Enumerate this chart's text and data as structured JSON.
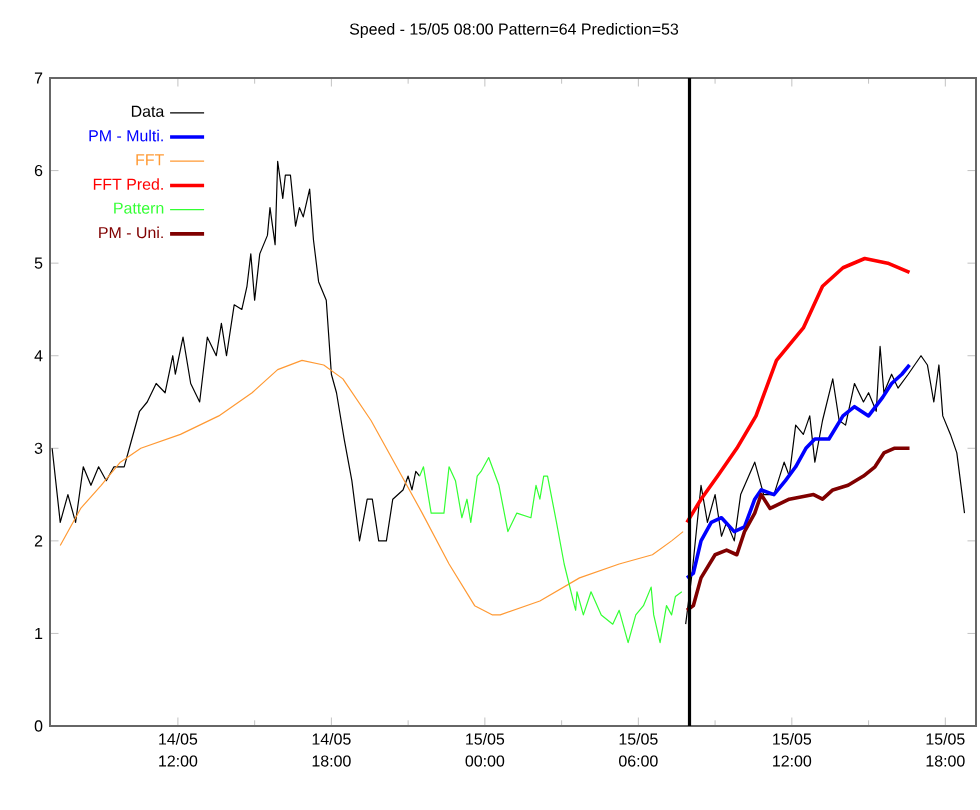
{
  "chart_data": {
    "type": "line",
    "title": "Speed - 15/05 08:00 Pattern=64 Prediction=53",
    "xlim": [
      "--05-14T07:00",
      "--05-15T19:12"
    ],
    "ylim": [
      0,
      7
    ],
    "yticks": [
      0,
      1,
      2,
      3,
      4,
      5,
      6,
      7
    ],
    "xticks": [
      {
        "value": "--05-14T12:00",
        "label": "14/05 12:00"
      },
      {
        "value": "--05-14T18:00",
        "label": "14/05 18:00"
      },
      {
        "value": "--05-15T00:00",
        "label": "15/05 00:00"
      },
      {
        "value": "--05-15T06:00",
        "label": "15/05 06:00"
      },
      {
        "value": "--05-15T12:00",
        "label": "15/05 12:00"
      },
      {
        "value": "--05-15T18:00",
        "label": "15/05 18:00"
      }
    ],
    "legend": "top left",
    "grid": false,
    "marker": "none",
    "line_style": "solid",
    "ref_lines": [
      {
        "axis": "x",
        "value": "--05-15T08:00",
        "color": "#000000"
      }
    ],
    "series": [
      {
        "name": "Data",
        "color": "#000000",
        "x": [
          "--05-14T07:05",
          "--05-14T07:24",
          "--05-14T07:42",
          "--05-14T08:00",
          "--05-14T08:18",
          "--05-14T08:36",
          "--05-14T08:54",
          "--05-14T09:12",
          "--05-14T09:30",
          "--05-14T09:54",
          "--05-14T10:12",
          "--05-14T10:30",
          "--05-14T10:48",
          "--05-14T11:09",
          "--05-14T11:30",
          "--05-14T11:48",
          "--05-14T11:54",
          "--05-14T12:12",
          "--05-14T12:30",
          "--05-14T12:51",
          "--05-14T13:09",
          "--05-14T13:30",
          "--05-14T13:42",
          "--05-14T13:54",
          "--05-14T14:12",
          "--05-14T14:30",
          "--05-14T14:42",
          "--05-14T14:51",
          "--05-14T15:00",
          "--05-14T15:12",
          "--05-14T15:30",
          "--05-14T15:36",
          "--05-14T15:48",
          "--05-14T15:54",
          "--05-14T16:06",
          "--05-14T16:12",
          "--05-14T16:24",
          "--05-14T16:36",
          "--05-14T16:45",
          "--05-14T16:54",
          "--05-14T17:09",
          "--05-14T17:18",
          "--05-14T17:30",
          "--05-14T17:48",
          "--05-14T18:00",
          "--05-14T18:12",
          "--05-14T18:30",
          "--05-14T18:48",
          "--05-14T19:06",
          "--05-14T19:24",
          "--05-14T19:36",
          "--05-14T19:51",
          "--05-14T20:09",
          "--05-14T20:24",
          "--05-14T20:48",
          "--05-14T21:00",
          "--05-14T21:09",
          "--05-14T21:18",
          "--05-14T21:27",
          "--05-15T02:00",
          "--05-15T07:51",
          "--05-15T08:06",
          "--05-15T08:27",
          "--05-15T08:42",
          "--05-15T09:00",
          "--05-15T09:15",
          "--05-15T09:27",
          "--05-15T09:45",
          "--05-15T10:00",
          "--05-15T10:33",
          "--05-15T10:54",
          "--05-15T11:18",
          "--05-15T11:42",
          "--05-15T11:54",
          "--05-15T12:09",
          "--05-15T12:27",
          "--05-15T12:42",
          "--05-15T12:54",
          "--05-15T13:12",
          "--05-15T13:36",
          "--05-15T13:51",
          "--05-15T14:06",
          "--05-15T14:27",
          "--05-15T14:48",
          "--05-15T15:00",
          "--05-15T15:18",
          "--05-15T15:27",
          "--05-15T15:36",
          "--05-15T15:54",
          "--05-15T16:09",
          "--05-15T16:33",
          "--05-15T17:03",
          "--05-15T17:18",
          "--05-15T17:33",
          "--05-15T17:45",
          "--05-15T17:54",
          "--05-15T18:12",
          "--05-15T18:27",
          "--05-15T18:45"
        ],
        "values": [
          3.0,
          2.2,
          2.5,
          2.2,
          2.8,
          2.6,
          2.8,
          2.65,
          2.8,
          2.8,
          3.1,
          3.4,
          3.5,
          3.7,
          3.6,
          4.0,
          3.8,
          4.2,
          3.7,
          3.5,
          4.2,
          4.0,
          4.35,
          4.0,
          4.55,
          4.5,
          4.75,
          5.1,
          4.6,
          5.1,
          5.3,
          5.6,
          5.2,
          6.1,
          5.7,
          5.95,
          5.95,
          5.4,
          5.6,
          5.5,
          5.8,
          5.25,
          4.8,
          4.6,
          3.8,
          3.6,
          3.1,
          2.65,
          2.0,
          2.45,
          2.45,
          2.0,
          2.0,
          2.45,
          2.55,
          2.7,
          2.55,
          2.75,
          2.7,
          null,
          1.1,
          1.65,
          2.6,
          2.2,
          2.5,
          2.05,
          2.2,
          2.0,
          2.5,
          2.85,
          2.5,
          2.5,
          2.85,
          2.7,
          3.25,
          3.15,
          3.35,
          2.85,
          3.3,
          3.75,
          3.3,
          3.25,
          3.7,
          3.5,
          3.6,
          3.4,
          4.1,
          3.6,
          3.8,
          3.65,
          3.8,
          4.0,
          3.9,
          3.5,
          3.9,
          3.35,
          3.15,
          2.95,
          2.3
        ]
      },
      {
        "name": "PM - Multi.",
        "color": "#0000ff",
        "x": [
          "--05-15T07:54",
          "--05-15T08:09",
          "--05-15T08:27",
          "--05-15T08:51",
          "--05-15T09:15",
          "--05-15T09:45",
          "--05-15T10:09",
          "--05-15T10:33",
          "--05-15T10:48",
          "--05-15T11:18",
          "--05-15T11:45",
          "--05-15T12:09",
          "--05-15T12:33",
          "--05-15T12:54",
          "--05-15T13:27",
          "--05-15T14:00",
          "--05-15T14:27",
          "--05-15T15:00",
          "--05-15T15:33",
          "--05-15T15:54",
          "--05-15T16:18",
          "--05-15T16:36"
        ],
        "values": [
          1.6,
          1.65,
          2.0,
          2.2,
          2.25,
          2.1,
          2.15,
          2.45,
          2.55,
          2.5,
          2.65,
          2.8,
          3.0,
          3.1,
          3.1,
          3.35,
          3.45,
          3.35,
          3.55,
          3.7,
          3.8,
          3.9
        ]
      },
      {
        "name": "FFT",
        "color": "#ff9933",
        "x": [
          "--05-14T07:24",
          "--05-14T08:12",
          "--05-14T09:00",
          "--05-14T09:45",
          "--05-14T10:33",
          "--05-14T12:06",
          "--05-14T13:36",
          "--05-14T14:54",
          "--05-14T15:54",
          "--05-14T16:51",
          "--05-14T17:42",
          "--05-14T18:27",
          "--05-14T19:33",
          "--05-14T20:33",
          "--05-14T21:33",
          "--05-14T22:36",
          "--05-14T23:36",
          "--05-15T00:18",
          "--05-15T00:36",
          "--05-15T02:09",
          "--05-15T03:42",
          "--05-15T05:15",
          "--05-15T06:33",
          "--05-15T07:18",
          "--05-15T07:45"
        ],
        "values": [
          1.95,
          2.35,
          2.6,
          2.85,
          3.0,
          3.15,
          3.35,
          3.6,
          3.85,
          3.95,
          3.9,
          3.75,
          3.3,
          2.8,
          2.3,
          1.75,
          1.3,
          1.2,
          1.2,
          1.35,
          1.6,
          1.75,
          1.85,
          2.0,
          2.1
        ]
      },
      {
        "name": "FFT Pred.",
        "color": "#ff0000",
        "x": [
          "--05-15T07:54",
          "--05-15T08:27",
          "--05-15T09:06",
          "--05-15T09:51",
          "--05-15T10:36",
          "--05-15T11:24",
          "--05-15T12:27",
          "--05-15T13:12",
          "--05-15T14:00",
          "--05-15T14:51",
          "--05-15T15:45",
          "--05-15T16:36"
        ],
        "values": [
          2.2,
          2.45,
          2.7,
          3.0,
          3.35,
          3.95,
          4.3,
          4.75,
          4.95,
          5.05,
          5.0,
          4.9
        ]
      },
      {
        "name": "Pattern",
        "color": "#33ff33",
        "x": [
          "--05-14T21:27",
          "--05-14T21:36",
          "--05-14T21:54",
          "--05-14T22:24",
          "--05-14T22:36",
          "--05-14T22:51",
          "--05-14T23:06",
          "--05-14T23:18",
          "--05-14T23:27",
          "--05-14T23:42",
          "--05-14T23:51",
          "--05-15T00:09",
          "--05-15T00:33",
          "--05-15T00:54",
          "--05-15T01:15",
          "--05-15T01:48",
          "--05-15T02:00",
          "--05-15T02:09",
          "--05-15T02:18",
          "--05-15T02:27",
          "--05-15T02:48",
          "--05-15T03:06",
          "--05-15T03:30",
          "--05-15T03:33",
          "--05-15T03:36",
          "--05-15T03:51",
          "--05-15T04:09",
          "--05-15T04:33",
          "--05-15T05:00",
          "--05-15T05:15",
          "--05-15T05:36",
          "--05-15T05:54",
          "--05-15T06:12",
          "--05-15T06:30",
          "--05-15T06:36",
          "--05-15T06:51",
          "--05-15T07:06",
          "--05-15T07:18",
          "--05-15T07:27",
          "--05-15T07:42"
        ],
        "values": [
          2.7,
          2.8,
          2.3,
          2.3,
          2.8,
          2.65,
          2.25,
          2.45,
          2.2,
          2.7,
          2.75,
          2.9,
          2.6,
          2.1,
          2.3,
          2.25,
          2.6,
          2.45,
          2.7,
          2.7,
          2.2,
          1.75,
          1.3,
          1.25,
          1.45,
          1.2,
          1.45,
          1.2,
          1.1,
          1.25,
          0.9,
          1.2,
          1.3,
          1.5,
          1.2,
          0.9,
          1.3,
          1.2,
          1.4,
          1.45
        ]
      },
      {
        "name": "PM - Uni.",
        "color": "#800000",
        "x": [
          "--05-15T07:54",
          "--05-15T08:09",
          "--05-15T08:27",
          "--05-15T09:00",
          "--05-15T09:27",
          "--05-15T09:51",
          "--05-15T10:09",
          "--05-15T10:33",
          "--05-15T10:48",
          "--05-15T11:09",
          "--05-15T11:54",
          "--05-15T12:51",
          "--05-15T13:12",
          "--05-15T13:36",
          "--05-15T14:12",
          "--05-15T14:48",
          "--05-15T15:15",
          "--05-15T15:36",
          "--05-15T16:00",
          "--05-15T16:36"
        ],
        "values": [
          1.25,
          1.3,
          1.6,
          1.85,
          1.9,
          1.85,
          2.1,
          2.3,
          2.5,
          2.35,
          2.45,
          2.5,
          2.45,
          2.55,
          2.6,
          2.7,
          2.8,
          2.95,
          3.0,
          3.0
        ]
      }
    ]
  }
}
